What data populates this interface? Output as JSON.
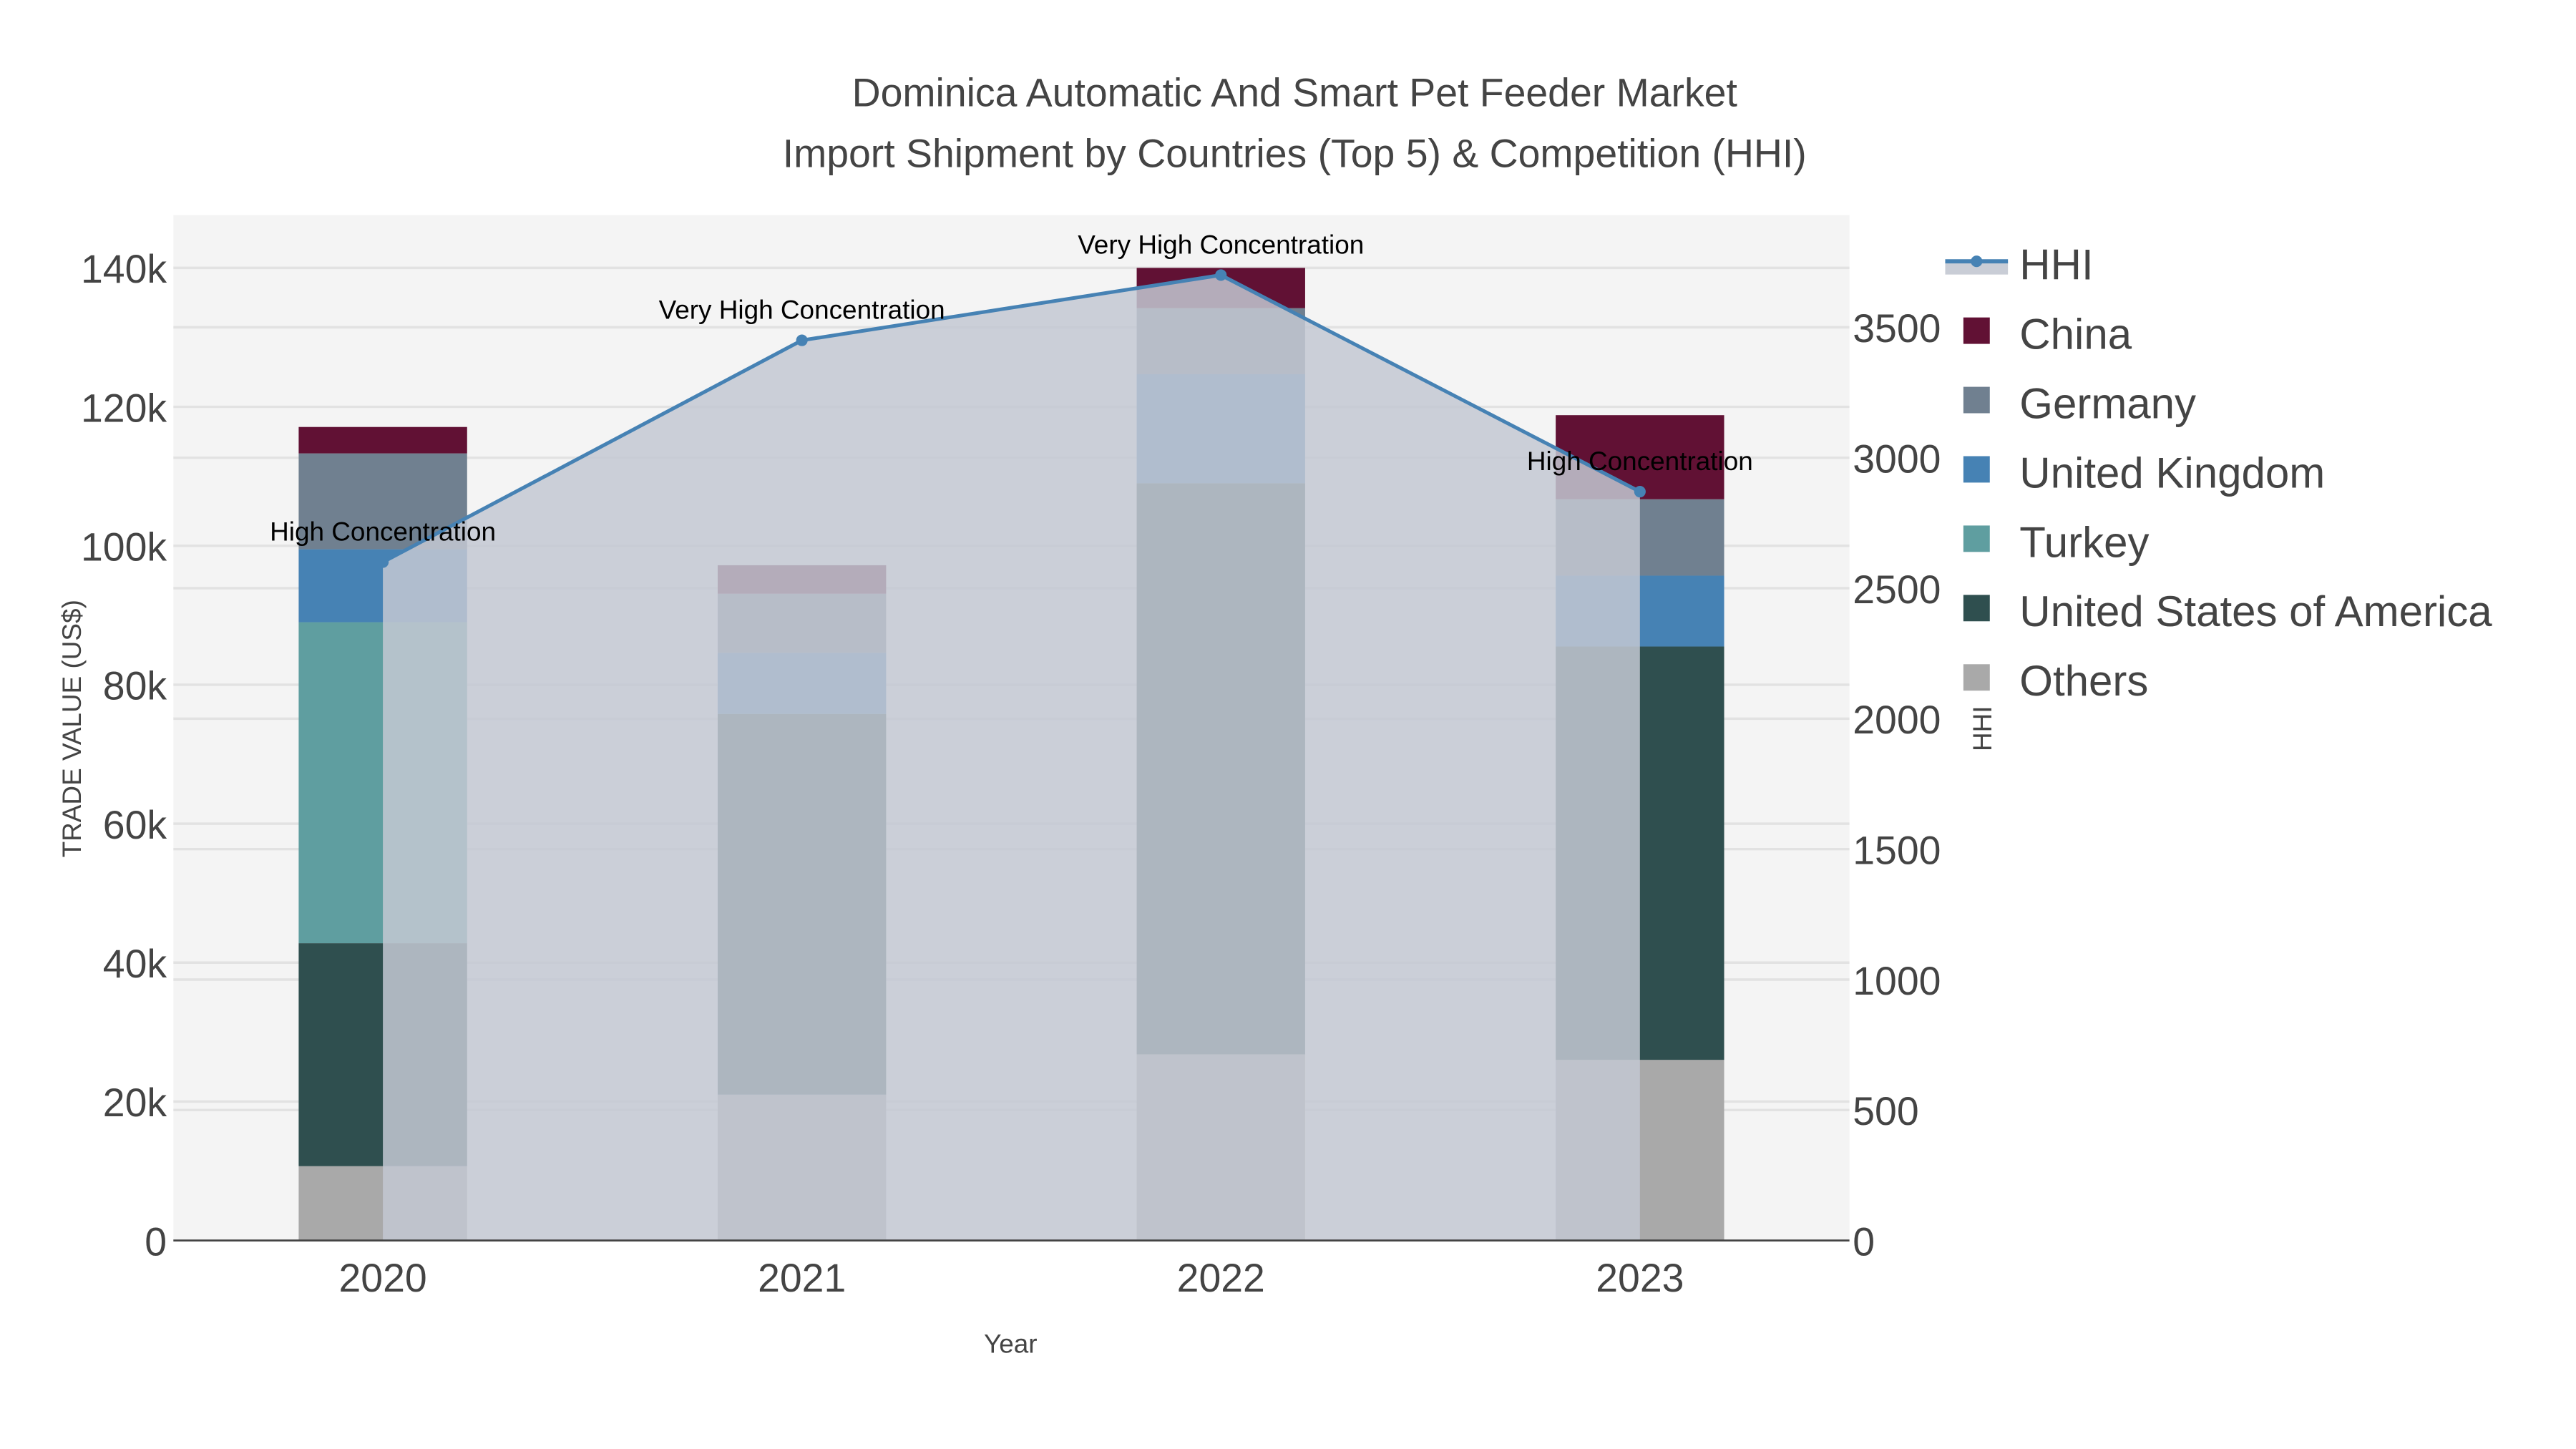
{
  "chart_data": {
    "type": "bar",
    "title": "Dominica Automatic And Smart Pet Feeder Market",
    "subtitle": "Import Shipment by Countries (Top 5) & Competition (HHI)",
    "xlabel": "Year",
    "ylabel": "TRADE VALUE (US$)",
    "y2label": "HHI",
    "categories": [
      "2020",
      "2021",
      "2022",
      "2023"
    ],
    "ylim": [
      0,
      147600
    ],
    "y2lim": [
      0,
      3930
    ],
    "yticks": [
      0,
      20000,
      40000,
      60000,
      80000,
      100000,
      120000,
      140000
    ],
    "ytick_labels": [
      "0",
      "20k",
      "40k",
      "60k",
      "80k",
      "100k",
      "120k",
      "140k"
    ],
    "y2ticks": [
      0,
      500,
      1000,
      1500,
      2000,
      2500,
      3000,
      3500
    ],
    "y2tick_labels": [
      "0",
      "500",
      "1000",
      "1500",
      "2000",
      "2500",
      "3000",
      "3500"
    ],
    "stacked": true,
    "series": [
      {
        "name": "Others",
        "color": "#a9a9a9",
        "values": [
          10700,
          21000,
          26800,
          26000
        ]
      },
      {
        "name": "United States of America",
        "color": "#2f4f4f",
        "values": [
          32100,
          54800,
          82200,
          59500
        ]
      },
      {
        "name": "Turkey",
        "color": "#5f9ea0",
        "values": [
          46200,
          0,
          0,
          0
        ]
      },
      {
        "name": "United Kingdom",
        "color": "#4682b4",
        "values": [
          10500,
          8800,
          15700,
          10200
        ]
      },
      {
        "name": "Germany",
        "color": "#708090",
        "values": [
          13800,
          8500,
          9500,
          11000
        ]
      },
      {
        "name": "China",
        "color": "#611134",
        "values": [
          3800,
          4100,
          5800,
          12100
        ]
      }
    ],
    "hhi": {
      "name": "HHI",
      "color": "#4682b4",
      "values": [
        2600,
        3450,
        3700,
        2870
      ],
      "annotations": [
        "High Concentration",
        "Very High Concentration",
        "Very High Concentration",
        "High Concentration"
      ]
    },
    "legend": [
      "HHI",
      "China",
      "Germany",
      "United Kingdom",
      "Turkey",
      "United States of America",
      "Others"
    ],
    "legend_position": "right",
    "grid": true
  }
}
